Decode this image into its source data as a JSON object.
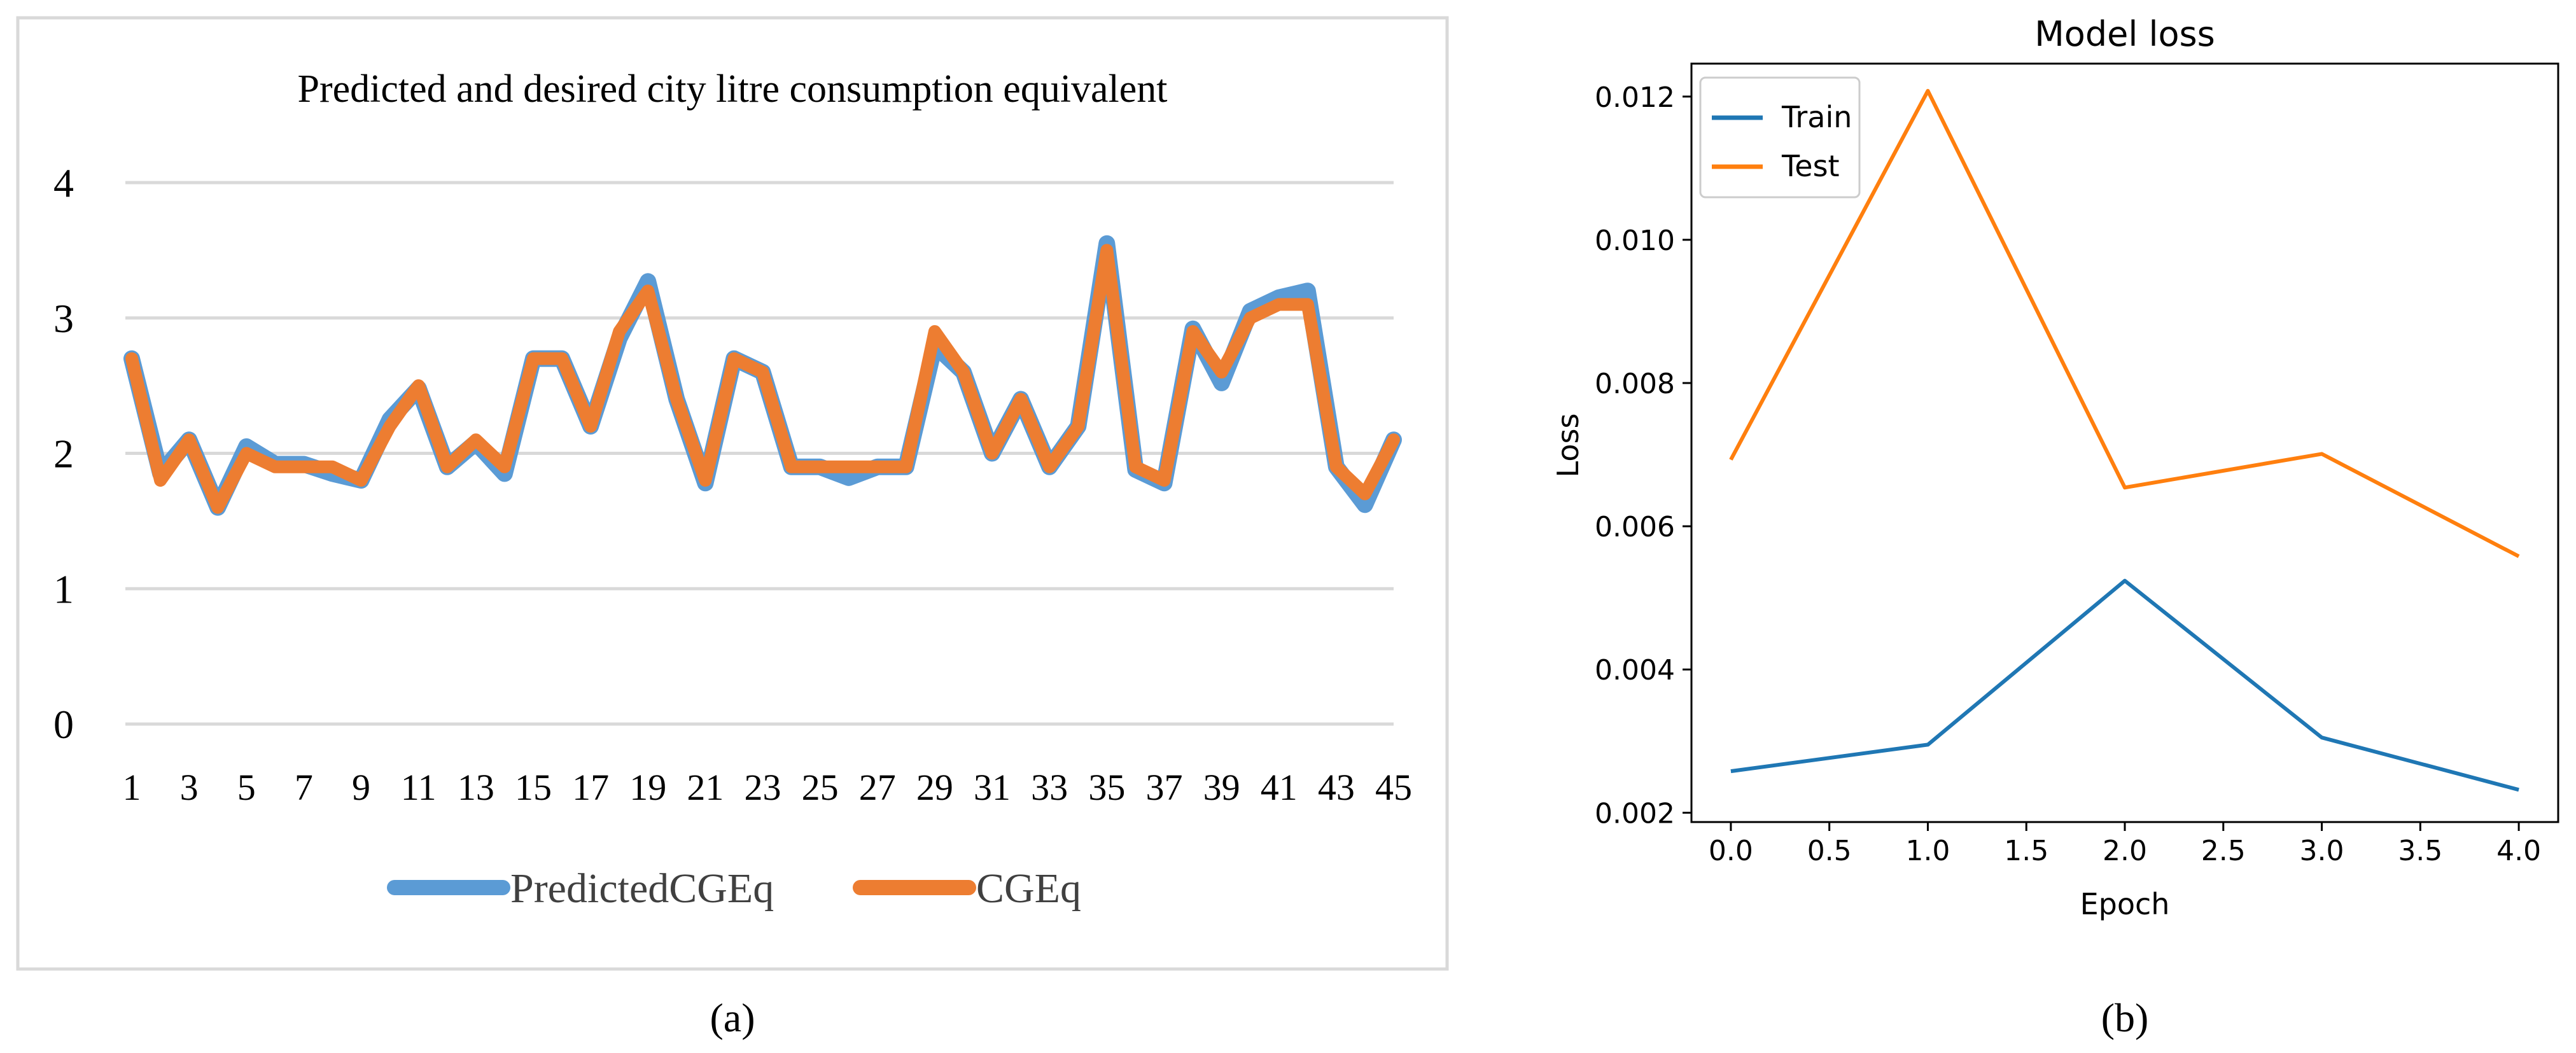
{
  "chart_data": [
    {
      "type": "line",
      "title": "Predicted and desired city litre consumption equivalent",
      "xlabel": "",
      "ylabel": "",
      "ylim": [
        0,
        4
      ],
      "yticks": [
        "0",
        "1",
        "2",
        "3",
        "4"
      ],
      "xticks": [
        "1",
        "3",
        "5",
        "7",
        "9",
        "11",
        "13",
        "15",
        "17",
        "19",
        "21",
        "23",
        "25",
        "27",
        "29",
        "31",
        "33",
        "35",
        "37",
        "39",
        "41",
        "43",
        "45"
      ],
      "x": [
        1,
        2,
        3,
        4,
        5,
        6,
        7,
        8,
        9,
        10,
        11,
        12,
        13,
        14,
        15,
        16,
        17,
        18,
        19,
        20,
        21,
        22,
        23,
        24,
        25,
        26,
        27,
        28,
        29,
        30,
        31,
        32,
        33,
        34,
        35,
        36,
        37,
        38,
        39,
        40,
        41,
        42,
        43,
        44,
        45
      ],
      "grid": true,
      "legend": "bottom-center",
      "series": [
        {
          "name": "PredictedCGEq",
          "color": "#5B9BD5",
          "values": [
            2.7,
            1.85,
            2.1,
            1.6,
            2.05,
            1.92,
            1.92,
            1.85,
            1.8,
            2.25,
            2.48,
            1.9,
            2.08,
            1.85,
            2.7,
            2.7,
            2.2,
            2.85,
            3.27,
            2.4,
            1.78,
            2.7,
            2.6,
            1.9,
            1.9,
            1.82,
            1.9,
            1.9,
            2.8,
            2.6,
            2.0,
            2.4,
            1.9,
            2.2,
            3.55,
            1.88,
            1.78,
            2.92,
            2.52,
            3.05,
            3.15,
            3.2,
            1.9,
            1.62,
            2.1
          ]
        },
        {
          "name": "CGEq",
          "color": "#ED7D31",
          "values": [
            2.7,
            1.8,
            2.1,
            1.6,
            2.0,
            1.9,
            1.9,
            1.9,
            1.8,
            2.2,
            2.5,
            1.9,
            2.1,
            1.9,
            2.7,
            2.7,
            2.2,
            2.9,
            3.2,
            2.4,
            1.8,
            2.7,
            2.6,
            1.9,
            1.9,
            1.9,
            1.9,
            1.9,
            2.9,
            2.6,
            2.0,
            2.4,
            1.9,
            2.2,
            3.5,
            1.9,
            1.8,
            2.9,
            2.6,
            3.0,
            3.1,
            3.1,
            1.9,
            1.7,
            2.1
          ]
        }
      ],
      "caption": "(a)"
    },
    {
      "type": "line",
      "title": "Model loss",
      "xlabel": "Epoch",
      "ylabel": "Loss",
      "xlim": [
        -0.2,
        4.2
      ],
      "ylim": [
        0.00187,
        0.01246
      ],
      "xticks": [
        "0.0",
        "0.5",
        "1.0",
        "1.5",
        "2.0",
        "2.5",
        "3.0",
        "3.5",
        "4.0"
      ],
      "yticks": [
        "0.002",
        "0.004",
        "0.006",
        "0.008",
        "0.010",
        "0.012"
      ],
      "x": [
        0,
        1,
        2,
        3,
        4
      ],
      "grid": false,
      "legend": "top-left",
      "series": [
        {
          "name": "Train",
          "color": "#1F77B4",
          "values": [
            0.00258,
            0.00295,
            0.00524,
            0.00305,
            0.00232
          ]
        },
        {
          "name": "Test",
          "color": "#FF7F0E",
          "values": [
            0.00693,
            0.01208,
            0.00654,
            0.00701,
            0.00558
          ]
        }
      ],
      "caption": "(b)"
    }
  ]
}
